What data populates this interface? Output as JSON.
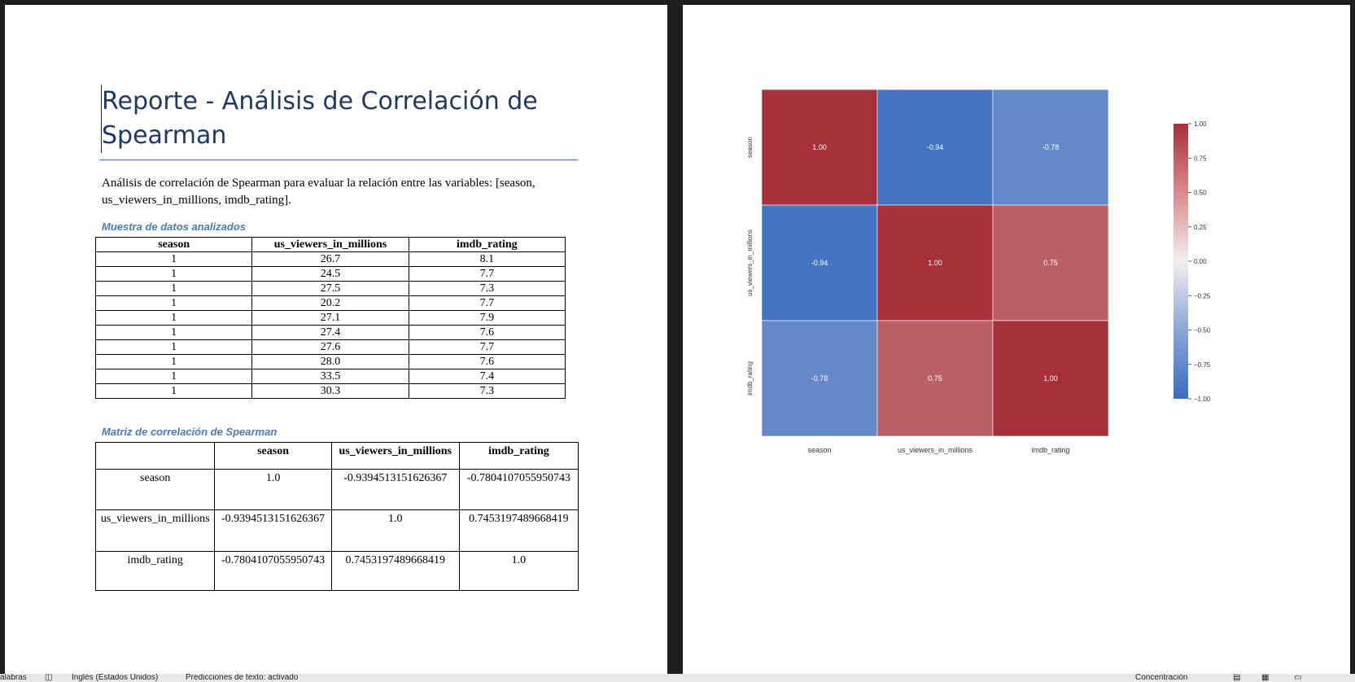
{
  "document": {
    "title": "Reporte - Análisis de Correlación de Spearman",
    "intro": "Análisis de correlación de Spearman para evaluar la relación entre las variables: [season, us_viewers_in_millions, imdb_rating].",
    "sample_heading": "Muestra de datos analizados",
    "matrix_heading": "Matriz de correlación de Spearman",
    "sample_table": {
      "headers": [
        "season",
        "us_viewers_in_millions",
        "imdb_rating"
      ],
      "rows": [
        [
          "1",
          "26.7",
          "8.1"
        ],
        [
          "1",
          "24.5",
          "7.7"
        ],
        [
          "1",
          "27.5",
          "7.3"
        ],
        [
          "1",
          "20.2",
          "7.7"
        ],
        [
          "1",
          "27.1",
          "7.9"
        ],
        [
          "1",
          "27.4",
          "7.6"
        ],
        [
          "1",
          "27.6",
          "7.7"
        ],
        [
          "1",
          "28.0",
          "7.6"
        ],
        [
          "1",
          "33.5",
          "7.4"
        ],
        [
          "1",
          "30.3",
          "7.3"
        ]
      ]
    },
    "matrix_table": {
      "headers": [
        "",
        "season",
        "us_viewers_in_millions",
        "imdb_rating"
      ],
      "rows": [
        [
          "season",
          "1.0",
          "-0.9394513151626367",
          "-0.7804107055950743"
        ],
        [
          "us_viewers_in_millions",
          "-0.9394513151626367",
          "1.0",
          "0.7453197489668419"
        ],
        [
          "imdb_rating",
          "-0.7804107055950743",
          "0.7453197489668419",
          "1.0"
        ]
      ]
    }
  },
  "chart_data": {
    "type": "heatmap",
    "rows": [
      "season",
      "us_viewers_in_millions",
      "imdb_rating"
    ],
    "columns": [
      "season",
      "us_viewers_in_millions",
      "imdb_rating"
    ],
    "values": [
      [
        1.0,
        -0.94,
        -0.78
      ],
      [
        -0.94,
        1.0,
        0.75
      ],
      [
        -0.78,
        0.75,
        1.0
      ]
    ],
    "cell_labels": [
      [
        "1.00",
        "-0.94",
        "-0.78"
      ],
      [
        "-0.94",
        "1.00",
        "0.75"
      ],
      [
        "-0.78",
        "0.75",
        "1.00"
      ]
    ],
    "colorbar": {
      "range": [
        -1.0,
        1.0
      ],
      "ticks": [
        "1.00",
        "0.75",
        "0.50",
        "0.25",
        "0.00",
        "−0.25",
        "−0.50",
        "−0.75",
        "−1.00"
      ],
      "colormap": [
        "#3b6fc2",
        "#f5f0f0",
        "#b0343c"
      ]
    },
    "title": ""
  },
  "status_bar": {
    "words": "alabras",
    "language": "Inglés (Estados Unidos)",
    "predictions": "Predicciones de texto: activado",
    "focus": "Concentración"
  }
}
